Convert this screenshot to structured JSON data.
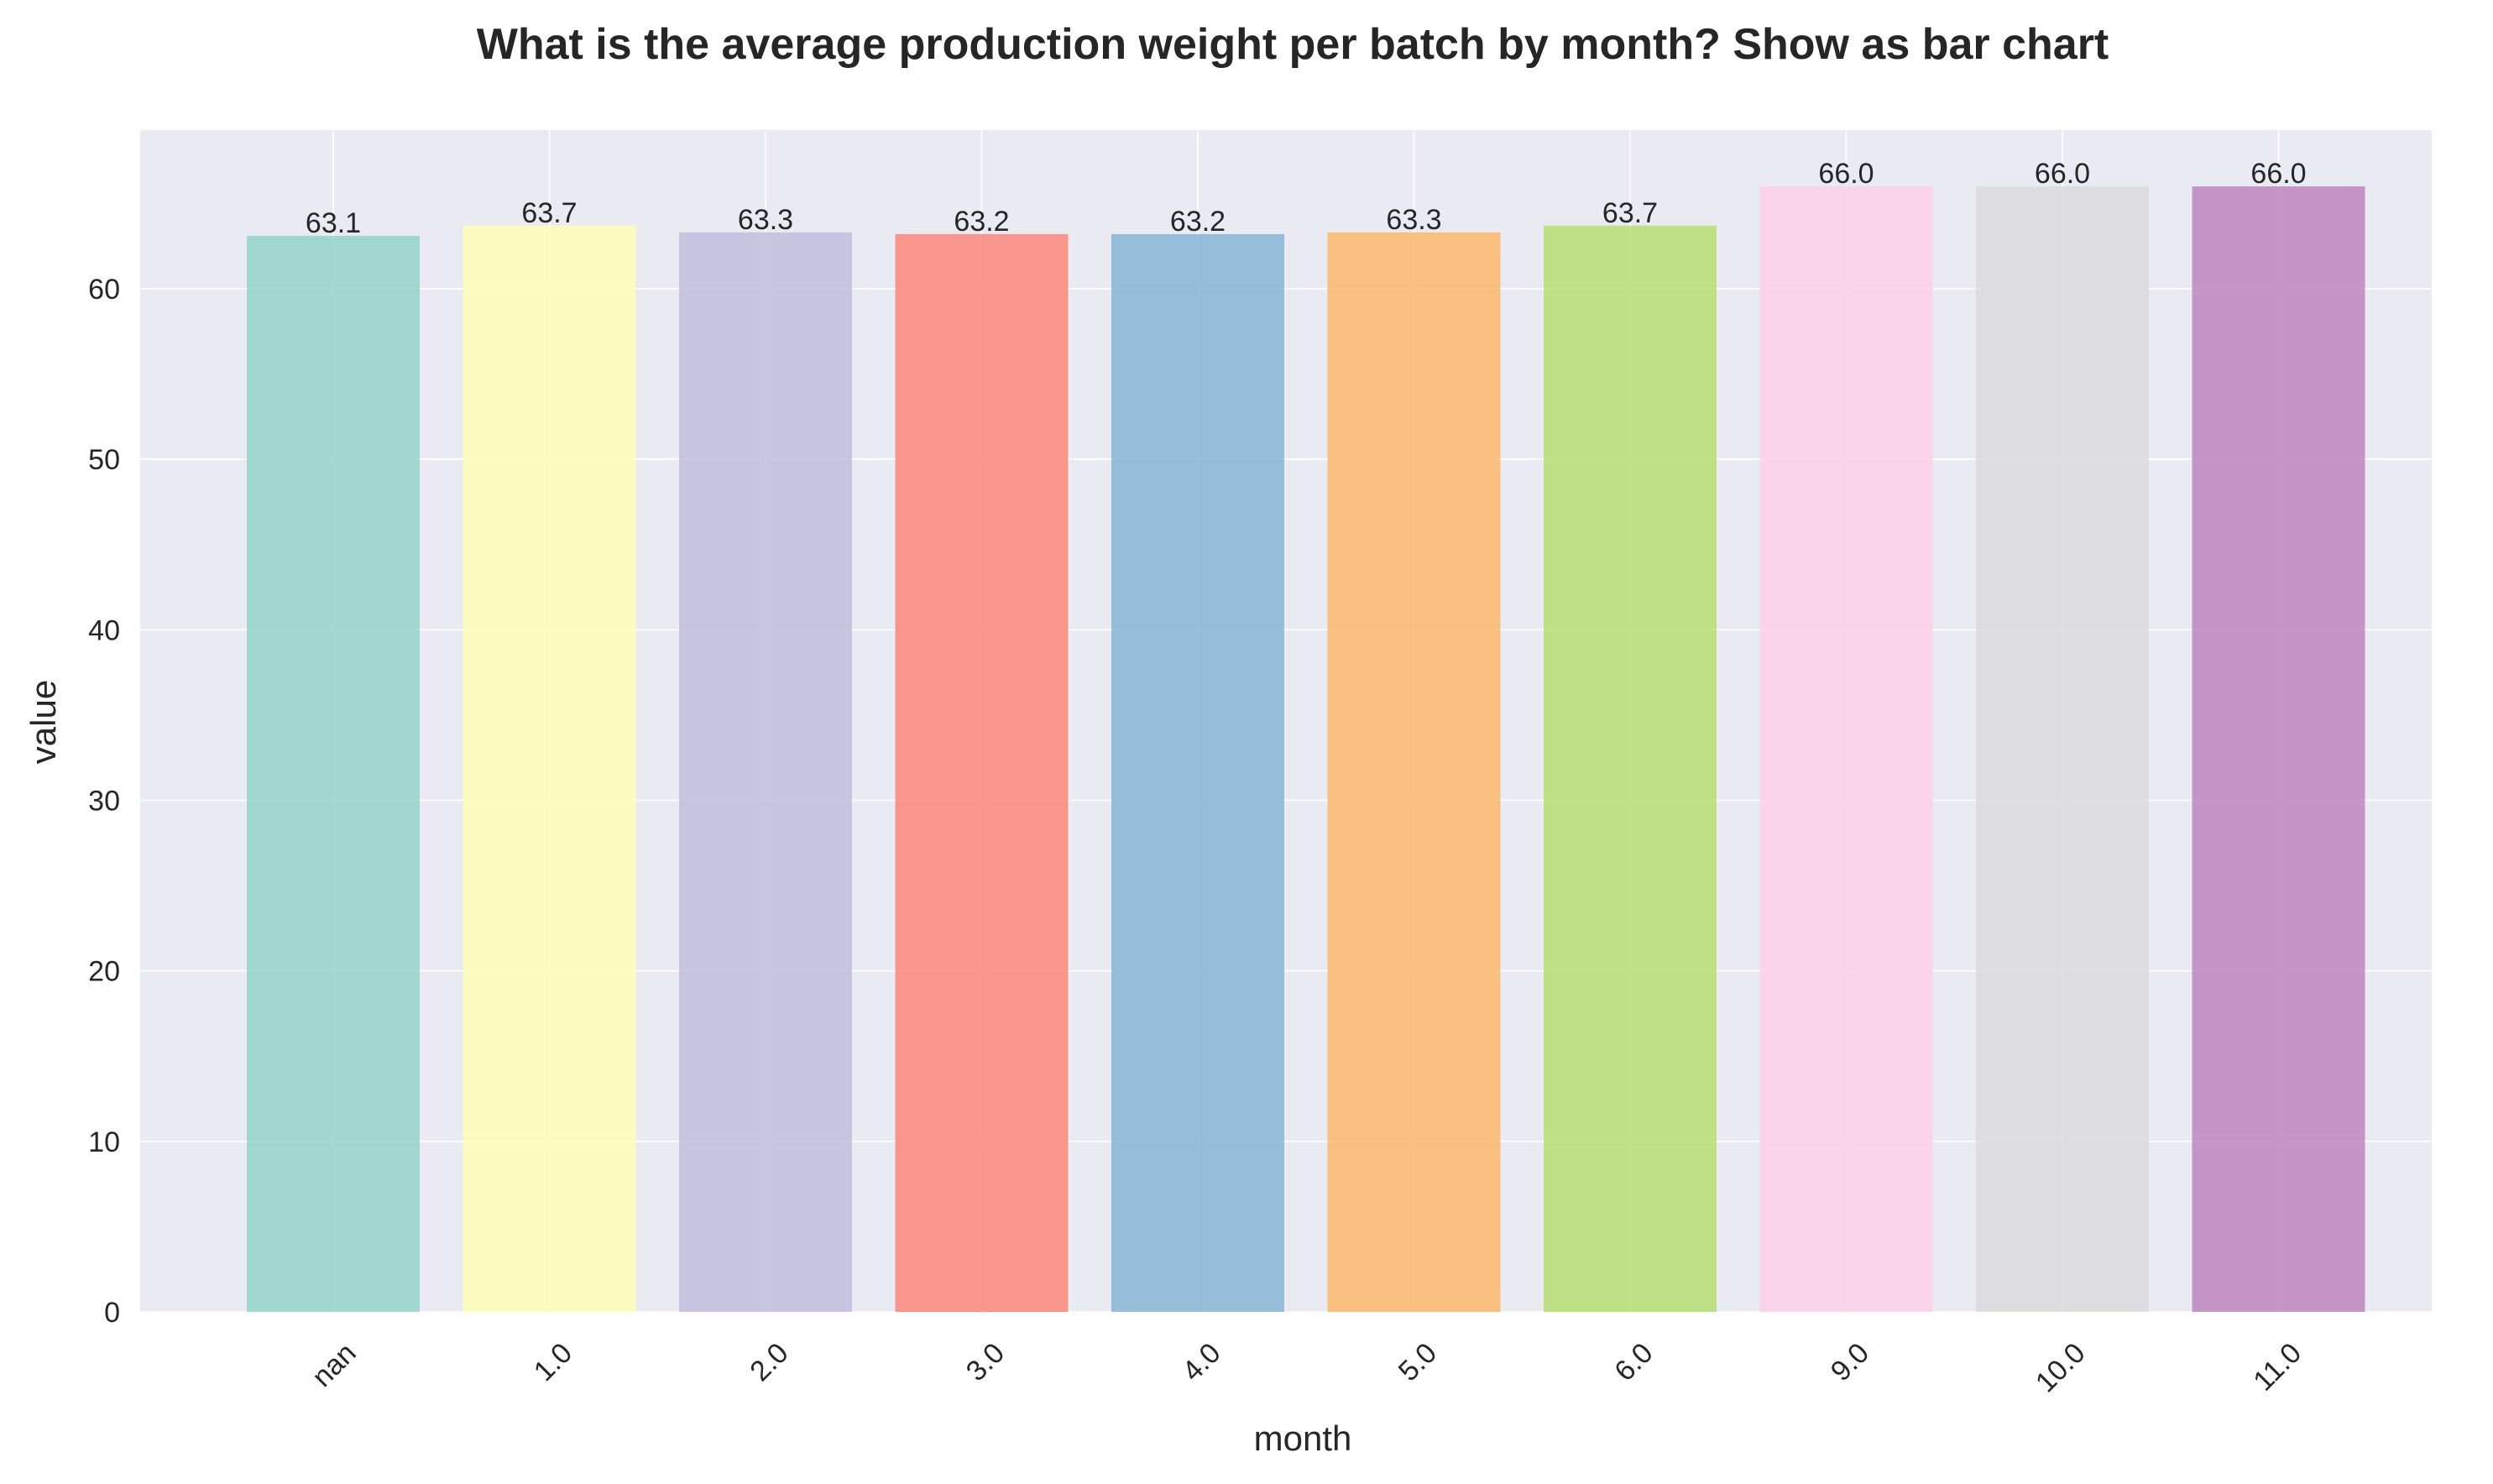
{
  "chart_data": {
    "type": "bar",
    "title": "What is the average production weight per batch by month? Show as bar chart",
    "xlabel": "month",
    "ylabel": "value",
    "categories": [
      "nan",
      "1.0",
      "2.0",
      "3.0",
      "4.0",
      "5.0",
      "6.0",
      "9.0",
      "10.0",
      "11.0"
    ],
    "values": [
      63.1,
      63.7,
      63.3,
      63.2,
      63.2,
      63.3,
      63.7,
      66.0,
      66.0,
      66.0
    ],
    "value_labels": [
      "63.1",
      "63.7",
      "63.3",
      "63.2",
      "63.2",
      "63.3",
      "63.7",
      "66.0",
      "66.0",
      "66.0"
    ],
    "colors": [
      "#8dd3c7",
      "#ffffb3",
      "#bebada",
      "#fb8072",
      "#80b1d3",
      "#fdb462",
      "#b3de69",
      "#fccde5",
      "#d9d9d9",
      "#bc80bd"
    ],
    "ylim": [
      0,
      69.3
    ],
    "yticks": [
      0,
      10,
      20,
      30,
      40,
      50,
      60
    ],
    "ytick_labels": [
      "0",
      "10",
      "20",
      "30",
      "40",
      "50",
      "60"
    ],
    "grid": true,
    "x_tick_rotation": "45 degrees",
    "plot_background": "#eaeaf2"
  }
}
